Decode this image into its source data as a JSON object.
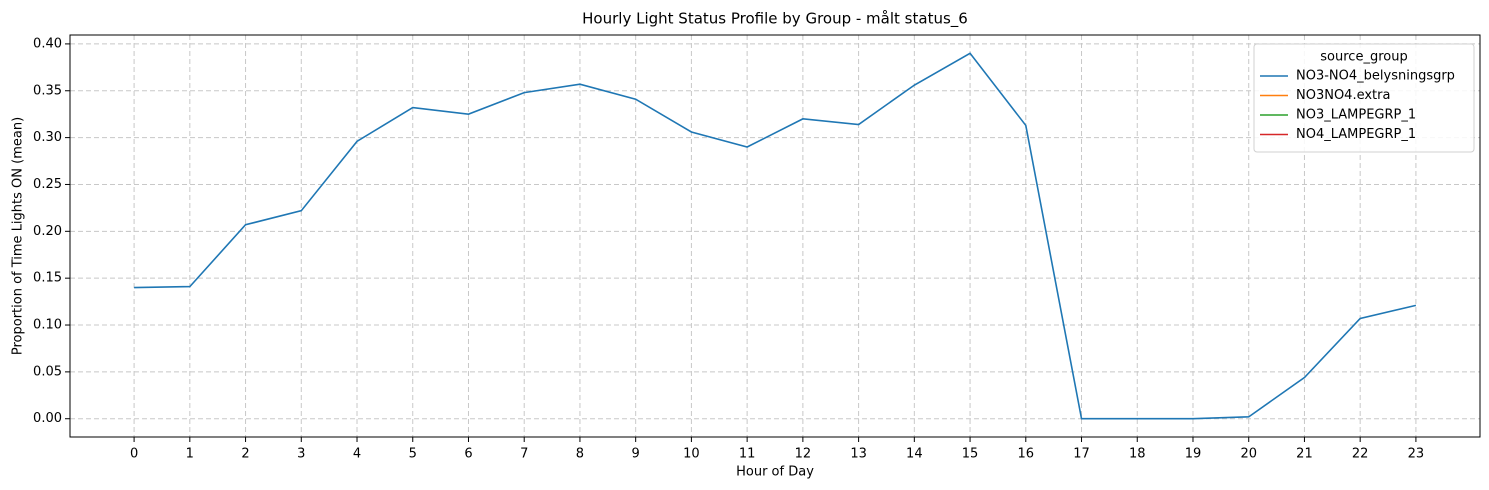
{
  "chart_data": {
    "type": "line",
    "title": "Hourly Light Status Profile by Group - målt status_6",
    "xlabel": "Hour of Day",
    "ylabel": "Proportion of Time Lights ON (mean)",
    "x": [
      0,
      1,
      2,
      3,
      4,
      5,
      6,
      7,
      8,
      9,
      10,
      11,
      12,
      13,
      14,
      15,
      16,
      17,
      18,
      19,
      20,
      21,
      22,
      23
    ],
    "series": [
      {
        "name": "NO3-NO4_belysningsgrp",
        "color": "#1f77b4",
        "values": [
          0.14,
          0.141,
          0.207,
          0.222,
          0.296,
          0.332,
          0.325,
          0.348,
          0.357,
          0.341,
          0.306,
          0.29,
          0.32,
          0.314,
          0.356,
          0.39,
          0.313,
          0.0,
          0.0,
          0.0,
          0.002,
          0.044,
          0.107,
          0.121
        ]
      },
      {
        "name": "NO3NO4.extra",
        "color": "#ff7f0e",
        "values": [
          null,
          null,
          null,
          null,
          null,
          null,
          null,
          null,
          null,
          null,
          null,
          null,
          null,
          null,
          null,
          null,
          null,
          null,
          null,
          null,
          null,
          null,
          null,
          null
        ]
      },
      {
        "name": "NO3_LAMPEGRP_1",
        "color": "#2ca02c",
        "values": [
          null,
          null,
          null,
          null,
          null,
          null,
          null,
          null,
          null,
          null,
          null,
          null,
          null,
          null,
          null,
          null,
          null,
          null,
          null,
          null,
          null,
          null,
          null,
          null
        ]
      },
      {
        "name": "NO4_LAMPEGRP_1",
        "color": "#d62728",
        "values": [
          null,
          null,
          null,
          null,
          null,
          null,
          null,
          null,
          null,
          null,
          null,
          null,
          null,
          null,
          null,
          null,
          null,
          null,
          null,
          null,
          null,
          null,
          null,
          null
        ]
      }
    ],
    "xlim": [
      -1.15,
      24.15
    ],
    "xticks": [
      0,
      1,
      2,
      3,
      4,
      5,
      6,
      7,
      8,
      9,
      10,
      11,
      12,
      13,
      14,
      15,
      16,
      17,
      18,
      19,
      20,
      21,
      22,
      23
    ],
    "ylim": [
      -0.0195,
      0.4095
    ],
    "yticks": [
      {
        "value": 0,
        "label": "0.00"
      },
      0.05,
      {
        "value": 0.1,
        "label": "0.10"
      },
      0.15,
      {
        "value": 0.2,
        "label": "0.20"
      },
      0.25,
      {
        "value": 0.3,
        "label": "0.30"
      },
      0.35,
      {
        "value": 0.4,
        "label": "0.40"
      }
    ],
    "grid": true,
    "legend_title": "source_group",
    "legend_position": "upper right"
  }
}
